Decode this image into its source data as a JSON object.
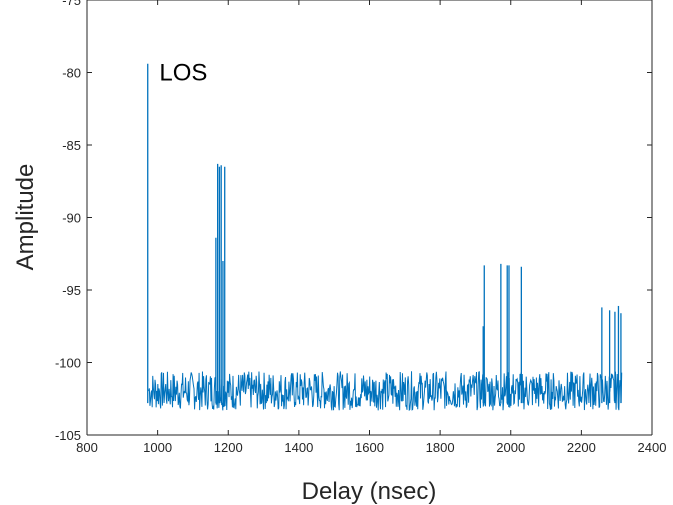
{
  "chart_data": {
    "type": "line",
    "title": "",
    "xlabel": "Delay (nsec)",
    "ylabel": "Amplitude",
    "xlim": [
      800,
      2400
    ],
    "ylim": [
      -105,
      -75
    ],
    "xticks": [
      800,
      1000,
      1200,
      1400,
      1600,
      1800,
      2000,
      2200,
      2400
    ],
    "yticks": [
      -105,
      -100,
      -95,
      -90,
      -85,
      -80,
      -75
    ],
    "grid": false,
    "legend": "none",
    "series_color": "#0072BD",
    "annotations": [
      {
        "text": "LOS",
        "x": 1005,
        "y": -80
      }
    ],
    "noise_floor": {
      "x_start": 975,
      "x_end": 2315,
      "y_min": -103.3,
      "y_max": -100.6
    },
    "peaks": [
      {
        "x": 972,
        "y": -79.4
      },
      {
        "x": 1165,
        "y": -91.4
      },
      {
        "x": 1170,
        "y": -86.3
      },
      {
        "x": 1175,
        "y": -86.5
      },
      {
        "x": 1180,
        "y": -86.4
      },
      {
        "x": 1185,
        "y": -93.0
      },
      {
        "x": 1190,
        "y": -86.5
      },
      {
        "x": 1922,
        "y": -97.5
      },
      {
        "x": 1925,
        "y": -93.3
      },
      {
        "x": 1972,
        "y": -93.2
      },
      {
        "x": 1990,
        "y": -93.3
      },
      {
        "x": 1995,
        "y": -93.3
      },
      {
        "x": 2030,
        "y": -93.4
      },
      {
        "x": 2258,
        "y": -96.2
      },
      {
        "x": 2280,
        "y": -96.4
      },
      {
        "x": 2295,
        "y": -96.5
      },
      {
        "x": 2305,
        "y": -96.1
      },
      {
        "x": 2312,
        "y": -96.6
      }
    ]
  }
}
